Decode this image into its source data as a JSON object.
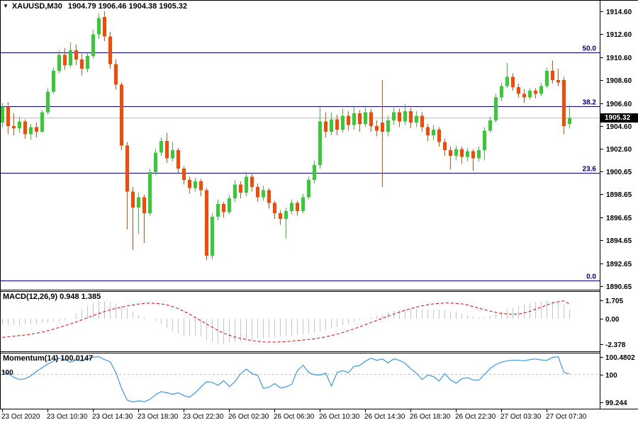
{
  "title": {
    "symbol_period": "XAUUSD,M30",
    "ohlc_text": "1904.79 1906.46 1904.38 1905.32"
  },
  "colors": {
    "background": "#ffffff",
    "bull": "#33cc33",
    "bear": "#ff4500",
    "fib": "#000080",
    "current_price_line": "#c0c0c0",
    "histogram": "#c6c6c6",
    "signal": "#e00000",
    "momentum": "#3d97e8",
    "axis_text": "#000000",
    "price_tag_bg": "#000000",
    "price_tag_text": "#ffffff"
  },
  "chart_data": {
    "type": "candlestick",
    "symbol": "XAUUSD",
    "timeframe": "M30",
    "title": "XAUUSD,M30 1904.79 1906.46 1904.38 1905.32",
    "last_ohlc": {
      "open": 1904.79,
      "high": 1906.46,
      "low": 1904.38,
      "close": 1905.32
    },
    "price_panel": {
      "ylim": [
        1890.65,
        1914.6
      ],
      "y_axis_ticks": [
        "1914.60",
        "1912.60",
        "1910.60",
        "1908.60",
        "1906.60",
        "1904.60",
        "1902.60",
        "1900.65",
        "1898.65",
        "1896.65",
        "1894.65",
        "1892.65",
        "1890.65"
      ],
      "fib_levels": [
        {
          "label": "50.0",
          "price": 1911.03
        },
        {
          "label": "38.2",
          "price": 1906.33
        },
        {
          "label": "23.6",
          "price": 1900.55
        },
        {
          "label": "0.0",
          "price": 1891.15
        }
      ],
      "current_price": 1905.32,
      "current_price_label": "1905.32",
      "candles": [
        [
          1904.9,
          1906.6,
          1904.5,
          1906.3
        ],
        [
          1906.3,
          1906.7,
          1903.9,
          1904.6
        ],
        [
          1904.6,
          1905.7,
          1903.8,
          1904.4
        ],
        [
          1904.4,
          1905.4,
          1904.0,
          1905.0
        ],
        [
          1905.0,
          1905.2,
          1903.5,
          1903.9
        ],
        [
          1903.9,
          1904.8,
          1903.4,
          1904.5
        ],
        [
          1904.5,
          1904.9,
          1903.6,
          1904.1
        ],
        [
          1904.1,
          1906.0,
          1904.0,
          1905.8
        ],
        [
          1905.8,
          1907.9,
          1905.6,
          1907.6
        ],
        [
          1907.6,
          1909.7,
          1907.4,
          1909.4
        ],
        [
          1909.4,
          1911.2,
          1909.2,
          1910.8
        ],
        [
          1910.8,
          1911.4,
          1909.5,
          1909.9
        ],
        [
          1909.9,
          1911.9,
          1909.7,
          1911.2
        ],
        [
          1911.2,
          1911.7,
          1909.9,
          1910.4
        ],
        [
          1910.4,
          1910.9,
          1909.0,
          1909.6
        ],
        [
          1909.6,
          1911.0,
          1909.3,
          1910.7
        ],
        [
          1910.7,
          1913.0,
          1910.5,
          1912.6
        ],
        [
          1912.6,
          1914.4,
          1912.2,
          1914.0
        ],
        [
          1914.1,
          1914.6,
          1912.0,
          1912.4
        ],
        [
          1912.4,
          1912.8,
          1909.6,
          1910.0
        ],
        [
          1910.0,
          1910.4,
          1907.8,
          1908.2
        ],
        [
          1908.2,
          1908.4,
          1902.5,
          1902.9
        ],
        [
          1902.9,
          1903.2,
          1895.6,
          1898.9
        ],
        [
          1898.9,
          1899.3,
          1893.8,
          1897.5
        ],
        [
          1897.5,
          1898.8,
          1895.2,
          1898.4
        ],
        [
          1898.4,
          1898.6,
          1894.4,
          1897.0
        ],
        [
          1897.0,
          1900.9,
          1896.8,
          1900.6
        ],
        [
          1900.6,
          1902.6,
          1900.3,
          1902.3
        ],
        [
          1902.3,
          1903.6,
          1902.0,
          1903.3
        ],
        [
          1903.3,
          1904.0,
          1901.4,
          1901.8
        ],
        [
          1901.8,
          1903.2,
          1901.5,
          1902.5
        ],
        [
          1902.5,
          1902.7,
          1900.5,
          1900.9
        ],
        [
          1900.9,
          1901.1,
          1899.5,
          1899.9
        ],
        [
          1899.9,
          1900.2,
          1898.7,
          1899.2
        ],
        [
          1899.2,
          1900.1,
          1898.9,
          1899.8
        ],
        [
          1899.8,
          1900.0,
          1898.5,
          1899.0
        ],
        [
          1899.0,
          1899.2,
          1892.9,
          1893.3
        ],
        [
          1893.3,
          1897.0,
          1893.0,
          1896.7
        ],
        [
          1896.7,
          1898.2,
          1896.4,
          1897.8
        ],
        [
          1897.8,
          1898.0,
          1896.6,
          1897.1
        ],
        [
          1897.1,
          1898.6,
          1896.9,
          1898.3
        ],
        [
          1898.3,
          1899.9,
          1898.0,
          1899.5
        ],
        [
          1899.5,
          1899.8,
          1898.3,
          1898.8
        ],
        [
          1898.8,
          1900.6,
          1898.5,
          1900.2
        ],
        [
          1900.2,
          1900.5,
          1898.9,
          1899.3
        ],
        [
          1899.3,
          1899.6,
          1898.0,
          1898.4
        ],
        [
          1898.4,
          1899.4,
          1898.1,
          1899.0
        ],
        [
          1899.0,
          1899.2,
          1897.4,
          1897.9
        ],
        [
          1897.9,
          1898.1,
          1896.5,
          1897.0
        ],
        [
          1897.0,
          1897.3,
          1896.0,
          1896.5
        ],
        [
          1896.5,
          1897.5,
          1894.8,
          1897.2
        ],
        [
          1897.2,
          1898.2,
          1896.9,
          1897.9
        ],
        [
          1897.9,
          1898.1,
          1896.8,
          1897.2
        ],
        [
          1897.2,
          1898.7,
          1897.0,
          1898.4
        ],
        [
          1898.4,
          1900.2,
          1898.2,
          1899.9
        ],
        [
          1899.9,
          1901.6,
          1899.6,
          1901.2
        ],
        [
          1901.2,
          1906.4,
          1900.9,
          1905.0
        ],
        [
          1905.0,
          1905.8,
          1903.6,
          1904.1
        ],
        [
          1904.1,
          1905.8,
          1903.8,
          1905.2
        ],
        [
          1905.2,
          1905.6,
          1903.8,
          1904.3
        ],
        [
          1904.3,
          1906.1,
          1904.0,
          1905.5
        ],
        [
          1905.5,
          1905.9,
          1904.2,
          1904.7
        ],
        [
          1904.7,
          1906.3,
          1904.3,
          1905.7
        ],
        [
          1905.7,
          1906.0,
          1904.1,
          1904.8
        ],
        [
          1904.8,
          1906.4,
          1904.5,
          1905.8
        ],
        [
          1905.8,
          1906.1,
          1904.1,
          1904.6
        ],
        [
          1904.6,
          1905.1,
          1903.7,
          1904.2
        ],
        [
          1904.9,
          1908.6,
          1899.3,
          1904.1
        ],
        [
          1904.1,
          1905.5,
          1903.7,
          1905.1
        ],
        [
          1905.1,
          1906.2,
          1904.7,
          1905.8
        ],
        [
          1905.8,
          1906.1,
          1904.5,
          1905.0
        ],
        [
          1905.0,
          1906.5,
          1904.7,
          1905.9
        ],
        [
          1905.9,
          1906.2,
          1904.4,
          1904.9
        ],
        [
          1904.9,
          1905.9,
          1904.5,
          1905.5
        ],
        [
          1905.5,
          1905.8,
          1904.1,
          1904.5
        ],
        [
          1904.5,
          1904.8,
          1903.3,
          1903.8
        ],
        [
          1903.8,
          1904.7,
          1903.4,
          1904.3
        ],
        [
          1904.3,
          1904.5,
          1902.8,
          1903.2
        ],
        [
          1903.2,
          1903.5,
          1902.0,
          1902.5
        ],
        [
          1902.5,
          1902.8,
          1900.8,
          1902.0
        ],
        [
          1902.0,
          1902.9,
          1901.6,
          1902.6
        ],
        [
          1902.6,
          1902.8,
          1901.3,
          1901.9
        ],
        [
          1901.9,
          1902.7,
          1901.5,
          1902.4
        ],
        [
          1902.4,
          1902.6,
          1900.7,
          1901.8
        ],
        [
          1901.8,
          1902.8,
          1901.5,
          1902.5
        ],
        [
          1902.5,
          1904.5,
          1901.6,
          1904.2
        ],
        [
          1904.2,
          1905.4,
          1904.0,
          1905.1
        ],
        [
          1905.1,
          1907.4,
          1904.9,
          1907.1
        ],
        [
          1907.1,
          1908.4,
          1906.8,
          1908.1
        ],
        [
          1908.1,
          1910.1,
          1907.9,
          1908.9
        ],
        [
          1908.9,
          1909.2,
          1907.7,
          1908.0
        ],
        [
          1908.0,
          1908.3,
          1907.1,
          1907.4
        ],
        [
          1907.4,
          1907.8,
          1906.6,
          1907.1
        ],
        [
          1907.1,
          1907.9,
          1906.9,
          1907.7
        ],
        [
          1907.7,
          1907.9,
          1907.0,
          1907.4
        ],
        [
          1907.4,
          1908.4,
          1907.2,
          1908.1
        ],
        [
          1908.1,
          1909.7,
          1907.9,
          1909.4
        ],
        [
          1909.4,
          1910.3,
          1908.3,
          1908.6
        ],
        [
          1908.6,
          1909.6,
          1908.1,
          1908.4
        ],
        [
          1908.6,
          1908.9,
          1903.9,
          1904.6
        ],
        [
          1904.79,
          1906.46,
          1904.38,
          1905.32
        ]
      ]
    },
    "macd": {
      "label": "MACD(12,26,9)",
      "values_text": "0.948 1.385",
      "macd_value": 0.948,
      "signal_value": 1.385,
      "y_axis_ticks": [
        "1.705",
        "0.00",
        "-2.378"
      ],
      "ylim": [
        -2.378,
        1.705
      ],
      "histogram": [
        -0.5,
        -0.6,
        -0.55,
        -0.6,
        -0.5,
        -0.45,
        -0.5,
        -0.42,
        -0.35,
        -0.3,
        -0.25,
        -0.15,
        0.0,
        0.5,
        0.9,
        1.25,
        1.5,
        1.705,
        1.68,
        1.6,
        1.45,
        1.25,
        1.0,
        0.7,
        0.35,
        0.15,
        0.0,
        -0.2,
        -0.5,
        -0.85,
        -1.15,
        -1.4,
        -1.55,
        -1.6,
        -1.55,
        -1.7,
        -1.95,
        -2.2,
        -2.378,
        -2.35,
        -2.28,
        -2.2,
        -2.12,
        -2.05,
        -1.95,
        -1.88,
        -1.82,
        -1.78,
        -1.72,
        -1.65,
        -1.6,
        -1.55,
        -1.5,
        -1.45,
        -1.38,
        -1.3,
        -1.2,
        -1.05,
        -0.9,
        -0.75,
        -0.6,
        -0.45,
        -0.3,
        -0.15,
        0.0,
        0.15,
        0.3,
        0.45,
        0.6,
        0.72,
        0.82,
        0.9,
        0.95,
        0.92,
        0.9,
        0.88,
        0.85,
        0.82,
        0.78,
        0.72,
        0.62,
        0.5,
        0.35,
        0.22,
        0.15,
        0.18,
        0.3,
        0.5,
        0.7,
        0.9,
        1.05,
        1.2,
        1.35,
        1.45,
        1.55,
        1.62,
        1.68,
        1.65,
        1.55,
        1.35,
        0.948
      ],
      "signal": [
        -1.75,
        -1.7,
        -1.64,
        -1.58,
        -1.52,
        -1.45,
        -1.36,
        -1.25,
        -1.12,
        -0.98,
        -0.82,
        -0.65,
        -0.48,
        -0.3,
        -0.1,
        0.1,
        0.3,
        0.5,
        0.68,
        0.84,
        0.98,
        1.1,
        1.2,
        1.3,
        1.38,
        1.44,
        1.47,
        1.45,
        1.4,
        1.3,
        1.15,
        0.95,
        0.7,
        0.42,
        0.12,
        -0.2,
        -0.5,
        -0.8,
        -1.1,
        -1.35,
        -1.55,
        -1.72,
        -1.85,
        -1.95,
        -2.05,
        -2.12,
        -2.18,
        -2.2,
        -2.2,
        -2.18,
        -2.15,
        -2.1,
        -2.05,
        -2.0,
        -1.95,
        -1.88,
        -1.8,
        -1.7,
        -1.58,
        -1.45,
        -1.3,
        -1.12,
        -0.95,
        -0.75,
        -0.55,
        -0.35,
        -0.15,
        0.05,
        0.25,
        0.45,
        0.62,
        0.8,
        0.95,
        1.1,
        1.22,
        1.32,
        1.4,
        1.45,
        1.48,
        1.48,
        1.45,
        1.4,
        1.3,
        1.15,
        1.0,
        0.85,
        0.72,
        0.6,
        0.5,
        0.45,
        0.42,
        0.45,
        0.55,
        0.7,
        0.9,
        1.1,
        1.3,
        1.48,
        1.6,
        1.68,
        1.385
      ]
    },
    "momentum": {
      "label": "Momentum(14)",
      "value_text": "100.0147",
      "last_value": 100.0147,
      "level": 100,
      "level_label": "100",
      "y_axis_ticks": [
        "100.4802",
        "100",
        "99.244"
      ],
      "ylim": [
        99.244,
        100.4802
      ],
      "values": [
        100.08,
        100.02,
        99.92,
        99.86,
        99.88,
        99.96,
        100.08,
        100.18,
        100.28,
        100.36,
        100.44,
        100.4,
        100.33,
        100.39,
        100.36,
        100.42,
        100.47,
        100.48,
        100.4,
        100.34,
        100.05,
        99.62,
        99.3,
        99.25,
        99.28,
        99.26,
        99.32,
        99.45,
        99.53,
        99.5,
        99.46,
        99.5,
        99.42,
        99.38,
        99.5,
        99.66,
        99.8,
        99.78,
        99.7,
        99.83,
        99.67,
        99.8,
        100.02,
        100.14,
        100.02,
        99.97,
        99.62,
        99.65,
        99.75,
        99.63,
        99.66,
        99.73,
        100.1,
        100.25,
        100.05,
        99.99,
        99.98,
        100.03,
        99.68,
        100.05,
        100.1,
        100.05,
        100.22,
        100.24,
        100.36,
        100.44,
        100.38,
        100.42,
        100.31,
        100.42,
        100.38,
        100.3,
        100.15,
        100.03,
        99.86,
        99.98,
        99.94,
        99.82,
        100.02,
        99.85,
        99.76,
        99.88,
        99.91,
        99.85,
        99.84,
        100.0,
        100.16,
        100.27,
        100.33,
        100.37,
        100.38,
        100.38,
        100.37,
        100.4,
        100.42,
        100.39,
        100.38,
        100.46,
        100.48,
        100.05,
        100.0147
      ]
    },
    "time_axis": {
      "labels": [
        "23 Oct 2020",
        "23 Oct 10:30",
        "23 Oct 14:30",
        "23 Oct 18:30",
        "23 Oct 22:30",
        "26 Oct 02:30",
        "26 Oct 06:30",
        "26 Oct 10:30",
        "26 Oct 14:30",
        "26 Oct 18:30",
        "26 Oct 22:30",
        "27 Oct 03:30",
        "27 Oct 07:30"
      ],
      "bars_per_tick": 8
    },
    "layout_hints": {
      "bars_visible": 101,
      "legend_position": "none",
      "grid": "off",
      "panels": [
        "price",
        "macd",
        "momentum"
      ]
    }
  }
}
